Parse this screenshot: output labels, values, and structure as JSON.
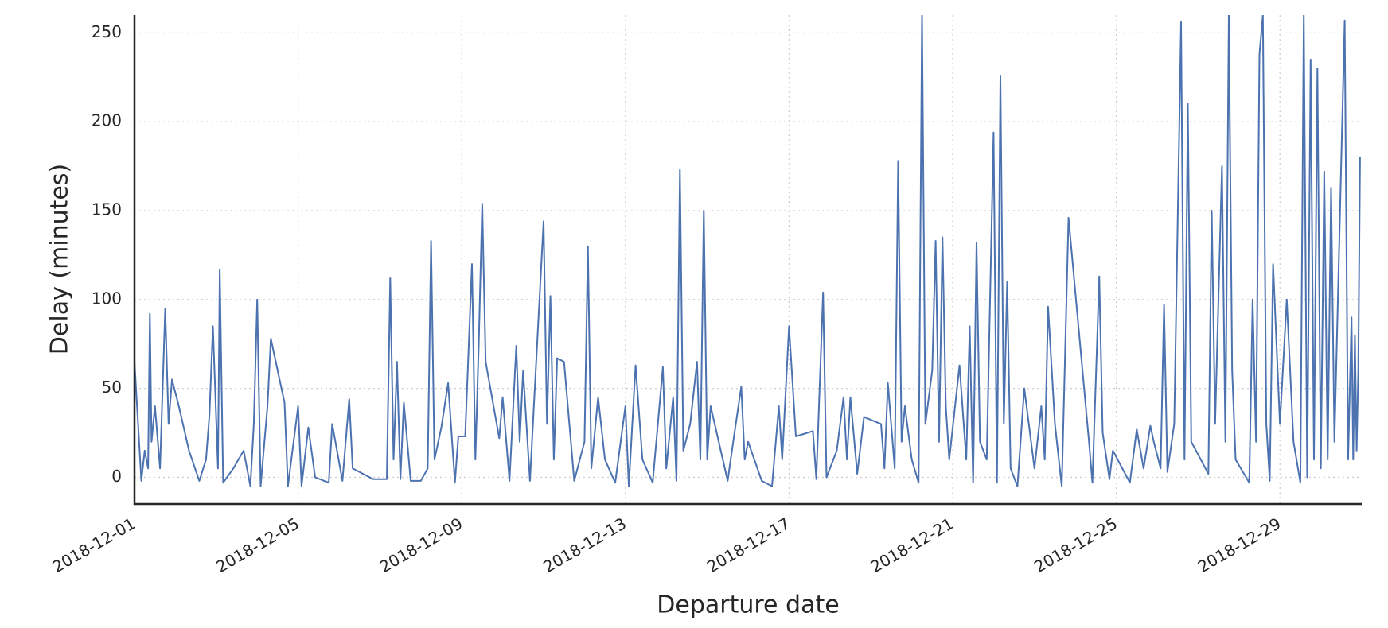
{
  "chart_data": {
    "type": "line",
    "xlabel": "Departure date",
    "ylabel": "Delay (minutes)",
    "xlim": [
      "2018-12-01 00:00",
      "2018-12-31 00:00"
    ],
    "xticks": [
      {
        "value": "2018-12-01 00:00",
        "label": "2018-12-01"
      },
      {
        "value": "2018-12-05 00:00",
        "label": "2018-12-05"
      },
      {
        "value": "2018-12-09 00:00",
        "label": "2018-12-09"
      },
      {
        "value": "2018-12-13 00:00",
        "label": "2018-12-13"
      },
      {
        "value": "2018-12-17 00:00",
        "label": "2018-12-17"
      },
      {
        "value": "2018-12-21 00:00",
        "label": "2018-12-21"
      },
      {
        "value": "2018-12-25 00:00",
        "label": "2018-12-25"
      },
      {
        "value": "2018-12-29 00:00",
        "label": "2018-12-29"
      }
    ],
    "ylim": [
      -15,
      260
    ],
    "yticks": [
      0,
      50,
      100,
      150,
      200,
      250
    ],
    "grid": true,
    "series": [
      {
        "name": "Delay",
        "color": "#4c72b0",
        "x": [
          "2018-12-01 00:00",
          "2018-12-01 04:00",
          "2018-12-01 06:00",
          "2018-12-01 08:00",
          "2018-12-01 09:00",
          "2018-12-01 10:00",
          "2018-12-01 12:00",
          "2018-12-01 15:00",
          "2018-12-01 18:00",
          "2018-12-01 20:00",
          "2018-12-01 22:00",
          "2018-12-02 02:00",
          "2018-12-02 08:00",
          "2018-12-02 14:00",
          "2018-12-02 18:00",
          "2018-12-02 20:00",
          "2018-12-02 22:00",
          "2018-12-03 01:00",
          "2018-12-03 02:00",
          "2018-12-03 04:00",
          "2018-12-03 10:00",
          "2018-12-03 16:00",
          "2018-12-03 20:00",
          "2018-12-03 22:00",
          "2018-12-04 00:00",
          "2018-12-04 02:00",
          "2018-12-04 06:00",
          "2018-12-04 08:00",
          "2018-12-04 16:00",
          "2018-12-04 18:00",
          "2018-12-05 00:00",
          "2018-12-05 02:00",
          "2018-12-05 06:00",
          "2018-12-05 10:00",
          "2018-12-05 18:00",
          "2018-12-05 20:00",
          "2018-12-06 02:00",
          "2018-12-06 06:00",
          "2018-12-06 08:00",
          "2018-12-06 20:00",
          "2018-12-07 04:00",
          "2018-12-07 06:00",
          "2018-12-07 08:00",
          "2018-12-07 10:00",
          "2018-12-07 12:00",
          "2018-12-07 14:00",
          "2018-12-07 18:00",
          "2018-12-08 00:00",
          "2018-12-08 04:00",
          "2018-12-08 06:00",
          "2018-12-08 08:00",
          "2018-12-08 12:00",
          "2018-12-08 16:00",
          "2018-12-08 20:00",
          "2018-12-08 22:00",
          "2018-12-09 02:00",
          "2018-12-09 06:00",
          "2018-12-09 08:00",
          "2018-12-09 10:00",
          "2018-12-09 12:00",
          "2018-12-09 14:00",
          "2018-12-09 22:00",
          "2018-12-10 00:00",
          "2018-12-10 04:00",
          "2018-12-10 08:00",
          "2018-12-10 10:00",
          "2018-12-10 12:00",
          "2018-12-10 16:00",
          "2018-12-11 00:00",
          "2018-12-11 02:00",
          "2018-12-11 04:00",
          "2018-12-11 06:00",
          "2018-12-11 08:00",
          "2018-12-11 12:00",
          "2018-12-11 18:00",
          "2018-12-12 00:00",
          "2018-12-12 02:00",
          "2018-12-12 04:00",
          "2018-12-12 08:00",
          "2018-12-12 12:00",
          "2018-12-12 18:00",
          "2018-12-13 00:00",
          "2018-12-13 02:00",
          "2018-12-13 06:00",
          "2018-12-13 10:00",
          "2018-12-13 16:00",
          "2018-12-13 22:00",
          "2018-12-14 00:00",
          "2018-12-14 04:00",
          "2018-12-14 06:00",
          "2018-12-14 08:00",
          "2018-12-14 10:00",
          "2018-12-14 14:00",
          "2018-12-14 18:00",
          "2018-12-14 20:00",
          "2018-12-14 22:00",
          "2018-12-15 00:00",
          "2018-12-15 02:00",
          "2018-12-15 12:00",
          "2018-12-15 16:00",
          "2018-12-15 20:00",
          "2018-12-15 22:00",
          "2018-12-16 00:00",
          "2018-12-16 08:00",
          "2018-12-16 14:00",
          "2018-12-16 18:00",
          "2018-12-16 20:00",
          "2018-12-17 00:00",
          "2018-12-17 04:00",
          "2018-12-17 14:00",
          "2018-12-17 16:00",
          "2018-12-17 20:00",
          "2018-12-17 22:00",
          "2018-12-18 04:00",
          "2018-12-18 08:00",
          "2018-12-18 10:00",
          "2018-12-18 12:00",
          "2018-12-18 16:00",
          "2018-12-18 20:00",
          "2018-12-19 06:00",
          "2018-12-19 08:00",
          "2018-12-19 10:00",
          "2018-12-19 14:00",
          "2018-12-19 16:00",
          "2018-12-19 18:00",
          "2018-12-19 20:00",
          "2018-12-20 00:00",
          "2018-12-20 04:00",
          "2018-12-20 06:00",
          "2018-12-20 08:00",
          "2018-12-20 12:00",
          "2018-12-20 14:00",
          "2018-12-20 16:00",
          "2018-12-20 18:00",
          "2018-12-20 20:00",
          "2018-12-20 22:00",
          "2018-12-21 04:00",
          "2018-12-21 08:00",
          "2018-12-21 10:00",
          "2018-12-21 12:00",
          "2018-12-21 14:00",
          "2018-12-21 16:00",
          "2018-12-21 20:00",
          "2018-12-22 00:00",
          "2018-12-22 02:00",
          "2018-12-22 04:00",
          "2018-12-22 06:00",
          "2018-12-22 08:00",
          "2018-12-22 10:00",
          "2018-12-22 14:00",
          "2018-12-22 18:00",
          "2018-12-23 00:00",
          "2018-12-23 04:00",
          "2018-12-23 06:00",
          "2018-12-23 08:00",
          "2018-12-23 12:00",
          "2018-12-23 16:00",
          "2018-12-23 20:00",
          "2018-12-24 08:00",
          "2018-12-24 10:00",
          "2018-12-24 14:00",
          "2018-12-24 16:00",
          "2018-12-24 20:00",
          "2018-12-24 22:00",
          "2018-12-25 08:00",
          "2018-12-25 12:00",
          "2018-12-25 16:00",
          "2018-12-25 20:00",
          "2018-12-25 22:00",
          "2018-12-26 02:00",
          "2018-12-26 04:00",
          "2018-12-26 06:00",
          "2018-12-26 10:00",
          "2018-12-26 14:00",
          "2018-12-26 16:00",
          "2018-12-26 18:00",
          "2018-12-26 20:00",
          "2018-12-27 06:00",
          "2018-12-27 08:00",
          "2018-12-27 10:00",
          "2018-12-27 14:00",
          "2018-12-27 16:00",
          "2018-12-27 18:00",
          "2018-12-27 20:00",
          "2018-12-27 22:00",
          "2018-12-28 06:00",
          "2018-12-28 08:00",
          "2018-12-28 10:00",
          "2018-12-28 12:00",
          "2018-12-28 14:00",
          "2018-12-28 16:00",
          "2018-12-28 18:00",
          "2018-12-28 20:00",
          "2018-12-29 00:00",
          "2018-12-29 04:00",
          "2018-12-29 08:00",
          "2018-12-29 12:00",
          "2018-12-29 14:00",
          "2018-12-29 16:00",
          "2018-12-29 18:00",
          "2018-12-29 20:00",
          "2018-12-29 22:00",
          "2018-12-30 00:00",
          "2018-12-30 02:00",
          "2018-12-30 04:00",
          "2018-12-30 06:00",
          "2018-12-30 08:00",
          "2018-12-30 14:00",
          "2018-12-30 16:00",
          "2018-12-30 18:00",
          "2018-12-30 19:00",
          "2018-12-30 20:00",
          "2018-12-30 21:00",
          "2018-12-30 22:00",
          "2018-12-30 23:00"
        ],
        "values": [
          65,
          -2,
          15,
          5,
          92,
          20,
          40,
          5,
          95,
          30,
          55,
          40,
          15,
          -2,
          10,
          35,
          85,
          5,
          117,
          -3,
          5,
          15,
          -5,
          30,
          100,
          -5,
          40,
          78,
          42,
          -5,
          40,
          -5,
          28,
          0,
          -3,
          30,
          -2,
          44,
          5,
          -1,
          -1,
          112,
          10,
          65,
          -1,
          42,
          -2,
          -2,
          5,
          133,
          10,
          28,
          53,
          -3,
          23,
          23,
          120,
          10,
          76,
          154,
          65,
          22,
          45,
          -2,
          74,
          20,
          60,
          -2,
          144,
          30,
          102,
          10,
          67,
          65,
          -2,
          20,
          130,
          5,
          45,
          10,
          -3,
          40,
          -5,
          63,
          10,
          -3,
          62,
          5,
          45,
          -2,
          173,
          15,
          30,
          65,
          10,
          150,
          10,
          40,
          -2,
          25,
          51,
          10,
          20,
          -2,
          -5,
          40,
          10,
          85,
          23,
          26,
          -1,
          104,
          0,
          15,
          45,
          10,
          45,
          2,
          34,
          30,
          5,
          53,
          5,
          178,
          20,
          40,
          10,
          -3,
          260,
          30,
          60,
          133,
          20,
          135,
          40,
          10,
          63,
          10,
          85,
          -3,
          132,
          20,
          10,
          194,
          -3,
          226,
          30,
          110,
          5,
          -5,
          50,
          5,
          40,
          10,
          96,
          30,
          -5,
          146,
          20,
          -3,
          113,
          25,
          -1,
          15,
          -3,
          27,
          5,
          29,
          20,
          5,
          97,
          3,
          30,
          256,
          10,
          210,
          20,
          2,
          150,
          30,
          175,
          20,
          260,
          60,
          10,
          -3,
          100,
          20,
          238,
          260,
          30,
          -2,
          120,
          30,
          100,
          20,
          -3,
          260,
          0,
          235,
          10,
          230,
          5,
          172,
          10,
          163,
          20,
          257,
          10,
          90,
          10,
          80,
          15,
          60,
          180
        ]
      }
    ]
  }
}
